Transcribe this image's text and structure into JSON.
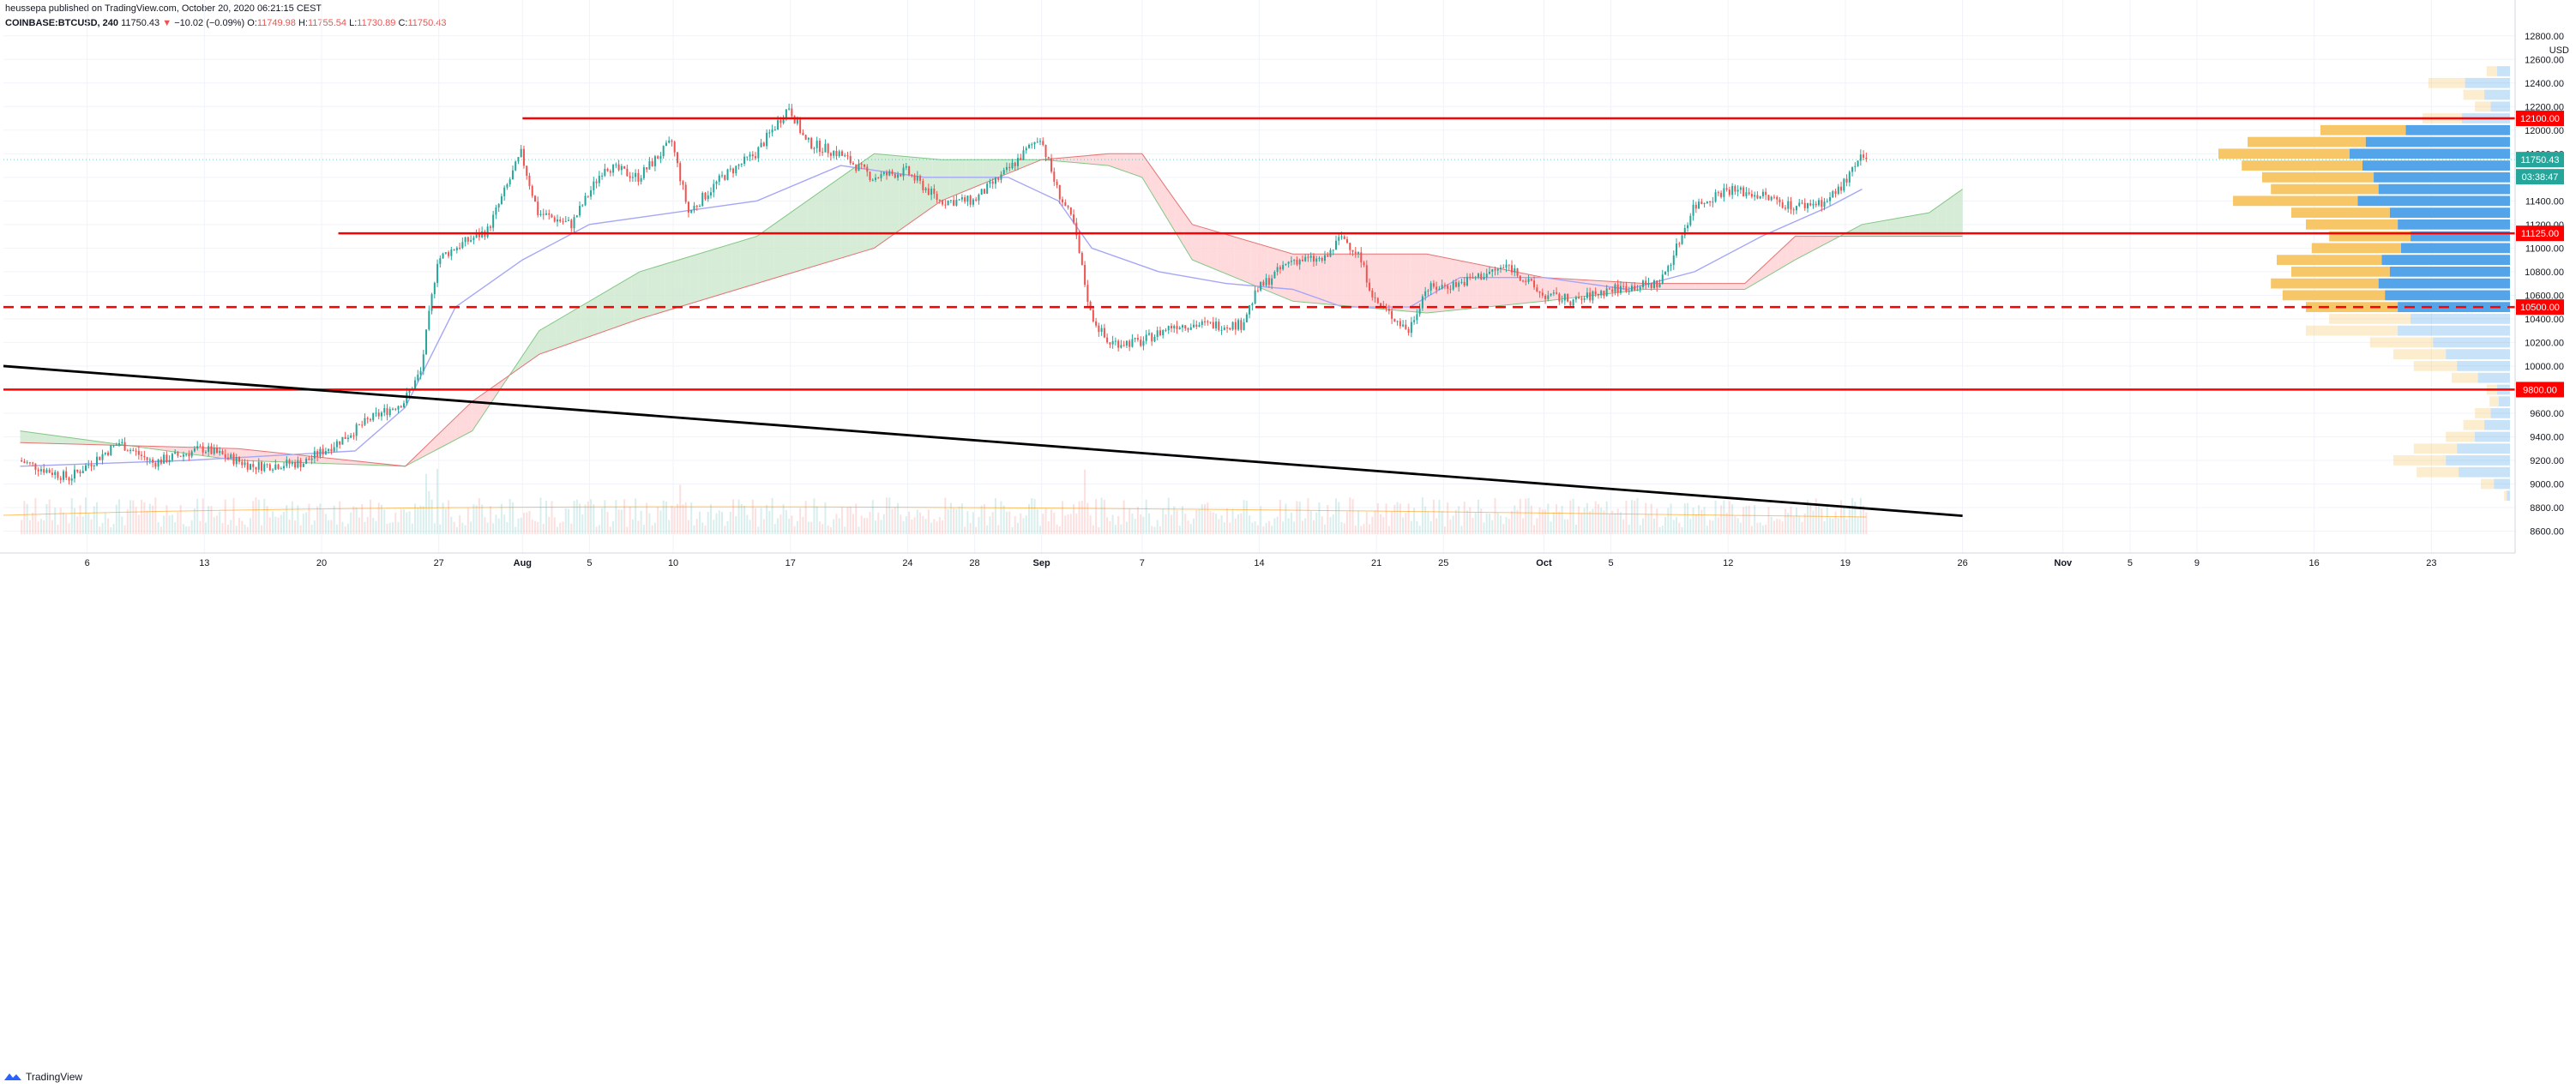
{
  "header": {
    "published_by": "heussepa published on TradingView.com, October 20, 2020 06:21:15 CEST",
    "symbol": "COINBASE:BTCUSD, 240",
    "last": "11750.43",
    "change_arrow": "▼",
    "change": "−10.02 (−0.09%)",
    "open_label": "O:",
    "open": "11749.98",
    "high_label": "H:",
    "high": "11755.54",
    "low_label": "L:",
    "low": "11730.89",
    "close_label": "C:",
    "close": "11750.43"
  },
  "footer": {
    "brand": "TradingView"
  },
  "colors": {
    "up": "#26a69a",
    "down": "#ef5350",
    "level_line": "#ff0000",
    "trendline": "#000000",
    "cloud_bull": "#c8e6c9",
    "cloud_bear": "#ffcdd2",
    "tenkan": "#a5a6f6",
    "vp_up": "#4a9fe8",
    "vp_down": "#f7c35f"
  },
  "chart_data": {
    "type": "candlestick",
    "currency": "USD",
    "timeframe": "240",
    "ylim": [
      8560,
      12900
    ],
    "yticks": [
      8600,
      8800,
      9000,
      9200,
      9400,
      9600,
      9800,
      10000,
      10200,
      10400,
      10600,
      10800,
      11000,
      11200,
      11400,
      11600,
      11800,
      12000,
      12200,
      12400,
      12600,
      12800
    ],
    "xtick_labels": [
      "6",
      "13",
      "20",
      "27",
      "Aug",
      "5",
      "10",
      "17",
      "24",
      "28",
      "Sep",
      "7",
      "14",
      "21",
      "25",
      "Oct",
      "5",
      "12",
      "19",
      "26",
      "Nov",
      "5",
      "9",
      "16",
      "23"
    ],
    "xtick_dates": [
      "2020-07-06",
      "2020-07-13",
      "2020-07-20",
      "2020-07-27",
      "2020-08-01",
      "2020-08-05",
      "2020-08-10",
      "2020-08-17",
      "2020-08-24",
      "2020-08-28",
      "2020-09-01",
      "2020-09-07",
      "2020-09-14",
      "2020-09-21",
      "2020-09-25",
      "2020-10-01",
      "2020-10-05",
      "2020-10-12",
      "2020-10-19",
      "2020-10-26",
      "2020-11-01",
      "2020-11-05",
      "2020-11-09",
      "2020-11-16",
      "2020-11-23"
    ],
    "price_path": [
      [
        "2020-07-02",
        9200
      ],
      [
        "2020-07-05",
        9050
      ],
      [
        "2020-07-08",
        9350
      ],
      [
        "2020-07-10",
        9180
      ],
      [
        "2020-07-13",
        9300
      ],
      [
        "2020-07-16",
        9150
      ],
      [
        "2020-07-19",
        9180
      ],
      [
        "2020-07-21",
        9350
      ],
      [
        "2020-07-23",
        9550
      ],
      [
        "2020-07-25",
        9700
      ],
      [
        "2020-07-26",
        9950
      ],
      [
        "2020-07-27",
        10900
      ],
      [
        "2020-07-28",
        11000
      ],
      [
        "2020-07-30",
        11150
      ],
      [
        "2020-08-01",
        11800
      ],
      [
        "2020-08-02",
        11300
      ],
      [
        "2020-08-04",
        11200
      ],
      [
        "2020-08-06",
        11700
      ],
      [
        "2020-08-08",
        11600
      ],
      [
        "2020-08-10",
        11900
      ],
      [
        "2020-08-11",
        11300
      ],
      [
        "2020-08-13",
        11600
      ],
      [
        "2020-08-15",
        11800
      ],
      [
        "2020-08-17",
        12200
      ],
      [
        "2020-08-18",
        11900
      ],
      [
        "2020-08-20",
        11800
      ],
      [
        "2020-08-22",
        11600
      ],
      [
        "2020-08-24",
        11650
      ],
      [
        "2020-08-26",
        11400
      ],
      [
        "2020-08-28",
        11400
      ],
      [
        "2020-08-30",
        11650
      ],
      [
        "2020-09-01",
        11950
      ],
      [
        "2020-09-02",
        11500
      ],
      [
        "2020-09-03",
        11200
      ],
      [
        "2020-09-04",
        10450
      ],
      [
        "2020-09-05",
        10200
      ],
      [
        "2020-09-07",
        10200
      ],
      [
        "2020-09-09",
        10350
      ],
      [
        "2020-09-11",
        10350
      ],
      [
        "2020-09-13",
        10350
      ],
      [
        "2020-09-14",
        10650
      ],
      [
        "2020-09-16",
        10900
      ],
      [
        "2020-09-18",
        10900
      ],
      [
        "2020-09-19",
        11100
      ],
      [
        "2020-09-20",
        10950
      ],
      [
        "2020-09-21",
        10550
      ],
      [
        "2020-09-23",
        10300
      ],
      [
        "2020-09-24",
        10650
      ],
      [
        "2020-09-26",
        10700
      ],
      [
        "2020-09-29",
        10850
      ],
      [
        "2020-10-01",
        10600
      ],
      [
        "2020-10-03",
        10550
      ],
      [
        "2020-10-05",
        10650
      ],
      [
        "2020-10-08",
        10700
      ],
      [
        "2020-10-09",
        11000
      ],
      [
        "2020-10-10",
        11350
      ],
      [
        "2020-10-12",
        11500
      ],
      [
        "2020-10-14",
        11450
      ],
      [
        "2020-10-16",
        11350
      ],
      [
        "2020-10-18",
        11400
      ],
      [
        "2020-10-19",
        11550
      ],
      [
        "2020-10-20",
        11750
      ]
    ],
    "ichimoku": {
      "tenkan": [
        [
          "2020-07-02",
          9150
        ],
        [
          "2020-07-12",
          9200
        ],
        [
          "2020-07-22",
          9280
        ],
        [
          "2020-07-25",
          9650
        ],
        [
          "2020-07-28",
          10500
        ],
        [
          "2020-08-01",
          10900
        ],
        [
          "2020-08-05",
          11200
        ],
        [
          "2020-08-15",
          11400
        ],
        [
          "2020-08-20",
          11700
        ],
        [
          "2020-08-25",
          11600
        ],
        [
          "2020-08-30",
          11600
        ],
        [
          "2020-09-02",
          11400
        ],
        [
          "2020-09-04",
          11000
        ],
        [
          "2020-09-08",
          10800
        ],
        [
          "2020-09-12",
          10700
        ],
        [
          "2020-09-16",
          10650
        ],
        [
          "2020-09-19",
          10500
        ],
        [
          "2020-09-23",
          10500
        ],
        [
          "2020-09-26",
          10750
        ],
        [
          "2020-10-01",
          10750
        ],
        [
          "2020-10-06",
          10650
        ],
        [
          "2020-10-10",
          10800
        ],
        [
          "2020-10-14",
          11100
        ],
        [
          "2020-10-18",
          11350
        ],
        [
          "2020-10-20",
          11500
        ]
      ],
      "span_a": [
        [
          "2020-07-02",
          9450
        ],
        [
          "2020-07-15",
          9200
        ],
        [
          "2020-07-25",
          9150
        ],
        [
          "2020-07-29",
          9450
        ],
        [
          "2020-08-02",
          10300
        ],
        [
          "2020-08-08",
          10800
        ],
        [
          "2020-08-15",
          11100
        ],
        [
          "2020-08-22",
          11800
        ],
        [
          "2020-08-26",
          11750
        ],
        [
          "2020-09-01",
          11750
        ],
        [
          "2020-09-05",
          11700
        ],
        [
          "2020-09-07",
          11600
        ],
        [
          "2020-09-10",
          10900
        ],
        [
          "2020-09-16",
          10550
        ],
        [
          "2020-09-24",
          10450
        ],
        [
          "2020-10-01",
          10550
        ],
        [
          "2020-10-07",
          10650
        ],
        [
          "2020-10-13",
          10650
        ],
        [
          "2020-10-16",
          10900
        ],
        [
          "2020-10-20",
          11200
        ],
        [
          "2020-10-24",
          11300
        ],
        [
          "2020-10-26",
          11500
        ]
      ],
      "span_b": [
        [
          "2020-07-02",
          9350
        ],
        [
          "2020-07-15",
          9300
        ],
        [
          "2020-07-25",
          9150
        ],
        [
          "2020-07-29",
          9700
        ],
        [
          "2020-08-02",
          10100
        ],
        [
          "2020-08-08",
          10400
        ],
        [
          "2020-08-15",
          10700
        ],
        [
          "2020-08-22",
          11000
        ],
        [
          "2020-08-26",
          11400
        ],
        [
          "2020-09-01",
          11750
        ],
        [
          "2020-09-05",
          11800
        ],
        [
          "2020-09-07",
          11800
        ],
        [
          "2020-09-10",
          11200
        ],
        [
          "2020-09-16",
          10950
        ],
        [
          "2020-09-24",
          10950
        ],
        [
          "2020-10-01",
          10750
        ],
        [
          "2020-10-07",
          10700
        ],
        [
          "2020-10-13",
          10700
        ],
        [
          "2020-10-16",
          11100
        ],
        [
          "2020-10-20",
          11100
        ],
        [
          "2020-10-24",
          11100
        ],
        [
          "2020-10-26",
          11100
        ]
      ]
    },
    "trendlines": [
      {
        "from": [
          "2020-07-01",
          10000
        ],
        "to": [
          "2020-10-26",
          8730
        ]
      }
    ],
    "horizontal_levels": [
      {
        "price": 12100,
        "label": "12100.00",
        "style": "solid",
        "from": "2020-08-01"
      },
      {
        "price": 11125,
        "label": "11125.00",
        "style": "solid",
        "from": "2020-07-21"
      },
      {
        "price": 10500,
        "label": "10500.00",
        "style": "dashed",
        "from": "2020-07-01"
      },
      {
        "price": 9800,
        "label": "9800.00",
        "style": "solid",
        "from": "2020-07-01"
      }
    ],
    "price_labels": [
      {
        "text": "11750.43",
        "kind": "last"
      },
      {
        "text": "03:38:47",
        "kind": "countdown"
      }
    ],
    "current_price": 11750.43,
    "countdown": "03:38:47",
    "volume_profile": {
      "bins": [
        [
          12500,
          0.08
        ],
        [
          12400,
          0.28
        ],
        [
          12300,
          0.16
        ],
        [
          12200,
          0.12
        ],
        [
          12100,
          0.3
        ],
        [
          12000,
          0.65
        ],
        [
          11900,
          0.9
        ],
        [
          11800,
          1.0
        ],
        [
          11700,
          0.92
        ],
        [
          11600,
          0.85
        ],
        [
          11500,
          0.82
        ],
        [
          11400,
          0.95
        ],
        [
          11300,
          0.75
        ],
        [
          11200,
          0.7
        ],
        [
          11100,
          0.62
        ],
        [
          11000,
          0.68
        ],
        [
          10900,
          0.8
        ],
        [
          10800,
          0.75
        ],
        [
          10700,
          0.82
        ],
        [
          10600,
          0.78
        ],
        [
          10500,
          0.7
        ],
        [
          10400,
          0.62
        ],
        [
          10300,
          0.7
        ],
        [
          10200,
          0.48
        ],
        [
          10100,
          0.4
        ],
        [
          10000,
          0.33
        ],
        [
          9900,
          0.2
        ],
        [
          9800,
          0.08
        ],
        [
          9700,
          0.07
        ],
        [
          9600,
          0.12
        ],
        [
          9500,
          0.16
        ],
        [
          9400,
          0.22
        ],
        [
          9300,
          0.33
        ],
        [
          9200,
          0.4
        ],
        [
          9100,
          0.32
        ],
        [
          9000,
          0.1
        ],
        [
          8900,
          0.02
        ]
      ],
      "highlighted_range": [
        10450,
        12000
      ]
    },
    "volume": {
      "ma_level": "low",
      "note": ""
    }
  }
}
